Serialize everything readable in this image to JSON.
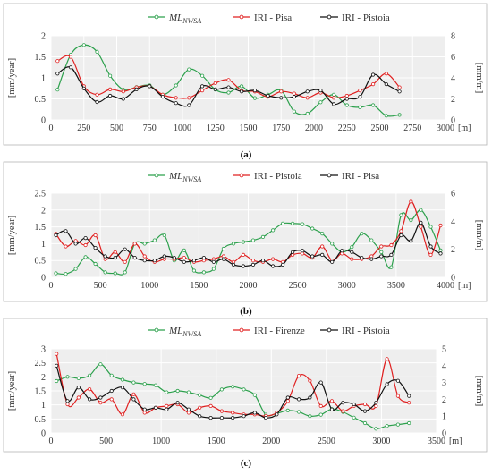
{
  "figure": {
    "panels": [
      {
        "caption": "(a)",
        "y_left_label": "[mm/year]",
        "y_right_label": "[mm/m]",
        "x_unit": "[m]",
        "legend": [
          "ML_NWSA",
          "IRI - Pisa",
          "IRI - Pistoia"
        ]
      },
      {
        "caption": "(b)",
        "y_left_label": "[mm/year]",
        "y_right_label": "[mm/m]",
        "x_unit": "[m]",
        "legend": [
          "ML_NWSA",
          "IRI - Pistoia",
          "IRI - Pisa"
        ]
      },
      {
        "caption": "(c)",
        "y_left_label": "[mm/year]",
        "y_right_label": "[mm/m]",
        "x_unit": "[m]",
        "legend": [
          "ML_NWSA",
          "IRI - Firenze",
          "IRI - Pistoia"
        ]
      }
    ]
  },
  "chart_data": [
    {
      "type": "line",
      "xlim": [
        0,
        3000
      ],
      "x_ticks": [
        0,
        250,
        500,
        750,
        1000,
        1250,
        1500,
        1750,
        2000,
        2250,
        2500,
        2750,
        3000
      ],
      "ylim_left": [
        0,
        2
      ],
      "y_left_ticks": [
        0,
        0.5,
        1,
        1.5,
        2
      ],
      "ylim_right": [
        0,
        8
      ],
      "y_right_ticks": [
        0,
        2,
        4,
        6,
        8
      ],
      "grid": true,
      "legend_position": "top",
      "series": [
        {
          "name": "ML_NWSA",
          "axis": "left",
          "color": "#2ca04c",
          "x": [
            50,
            150,
            250,
            350,
            450,
            550,
            650,
            750,
            850,
            950,
            1050,
            1150,
            1250,
            1350,
            1450,
            1550,
            1650,
            1750,
            1850,
            1950,
            2050,
            2150,
            2250,
            2350,
            2450,
            2550,
            2650
          ],
          "y": [
            0.72,
            1.55,
            1.78,
            1.62,
            1.05,
            0.72,
            0.78,
            0.82,
            0.6,
            0.82,
            1.2,
            1.05,
            0.72,
            0.65,
            0.8,
            0.52,
            0.6,
            0.7,
            0.2,
            0.15,
            0.42,
            0.6,
            0.35,
            0.3,
            0.35,
            0.1,
            0.12
          ]
        },
        {
          "name": "IRI - Pisa",
          "axis": "right",
          "color": "#e02020",
          "x": [
            50,
            150,
            250,
            350,
            450,
            550,
            650,
            750,
            850,
            950,
            1050,
            1150,
            1250,
            1350,
            1450,
            1550,
            1650,
            1750,
            1850,
            1950,
            2050,
            2150,
            2250,
            2350,
            2450,
            2550,
            2650
          ],
          "y": [
            5.6,
            6.0,
            3.2,
            2.4,
            2.9,
            2.7,
            3.1,
            3.2,
            2.4,
            2.1,
            2.1,
            2.8,
            3.5,
            3.8,
            2.8,
            2.7,
            2.2,
            2.7,
            2.5,
            2.1,
            2.6,
            2.1,
            2.3,
            2.8,
            3.4,
            4.4,
            3.1
          ]
        },
        {
          "name": "IRI - Pistoia",
          "axis": "right",
          "color": "#111111",
          "x": [
            50,
            150,
            250,
            350,
            450,
            550,
            650,
            750,
            850,
            950,
            1050,
            1150,
            1250,
            1350,
            1450,
            1550,
            1650,
            1750,
            1850,
            1950,
            2050,
            2150,
            2250,
            2350,
            2450,
            2550,
            2650
          ],
          "y": [
            4.4,
            5.0,
            3.0,
            1.7,
            2.3,
            2.0,
            2.9,
            3.2,
            2.2,
            1.6,
            1.4,
            3.2,
            2.9,
            3.1,
            2.7,
            2.8,
            2.3,
            2.1,
            2.2,
            2.7,
            2.8,
            1.5,
            2.0,
            2.2,
            4.3,
            3.4,
            2.7
          ]
        }
      ]
    },
    {
      "type": "line",
      "xlim": [
        0,
        4000
      ],
      "x_ticks": [
        0,
        500,
        1000,
        1500,
        2000,
        2500,
        3000,
        3500,
        4000
      ],
      "ylim_left": [
        0,
        2.5
      ],
      "y_left_ticks": [
        0,
        0.5,
        1,
        1.5,
        2,
        2.5
      ],
      "ylim_right": [
        0,
        6
      ],
      "y_right_ticks": [
        0,
        2,
        4,
        6
      ],
      "grid": true,
      "legend_position": "top",
      "series": [
        {
          "name": "ML_NWSA",
          "axis": "left",
          "color": "#2ca04c",
          "x": [
            50,
            150,
            250,
            350,
            450,
            550,
            650,
            750,
            850,
            950,
            1050,
            1150,
            1250,
            1350,
            1450,
            1550,
            1650,
            1750,
            1850,
            1950,
            2050,
            2150,
            2250,
            2350,
            2450,
            2550,
            2650,
            2750,
            2850,
            2950,
            3050,
            3150,
            3250,
            3350,
            3450,
            3550,
            3650,
            3750,
            3850,
            3950
          ],
          "y": [
            0.12,
            0.1,
            0.25,
            0.6,
            0.4,
            0.15,
            0.12,
            0.15,
            1.0,
            1.0,
            1.1,
            1.25,
            0.5,
            0.8,
            0.2,
            0.15,
            0.25,
            0.85,
            1.0,
            1.05,
            1.1,
            1.2,
            1.4,
            1.6,
            1.6,
            1.58,
            1.45,
            1.3,
            1.0,
            0.75,
            0.9,
            1.3,
            1.1,
            0.75,
            0.3,
            1.85,
            1.7,
            2.0,
            1.5,
            0.8
          ]
        },
        {
          "name": "IRI - Pistoia",
          "axis": "right",
          "color": "#e02020",
          "x": [
            50,
            150,
            250,
            350,
            450,
            550,
            650,
            750,
            850,
            950,
            1050,
            1150,
            1250,
            1350,
            1450,
            1550,
            1650,
            1750,
            1850,
            1950,
            2050,
            2150,
            2250,
            2350,
            2450,
            2550,
            2650,
            2750,
            2850,
            2950,
            3050,
            3150,
            3250,
            3350,
            3450,
            3550,
            3650,
            3750,
            3850,
            3950
          ],
          "y": [
            3.1,
            2.2,
            2.6,
            2.3,
            3.0,
            1.3,
            1.8,
            1.1,
            2.4,
            1.5,
            1.1,
            1.3,
            1.3,
            1.4,
            1.1,
            1.2,
            1.3,
            1.5,
            1.1,
            1.6,
            1.2,
            1.1,
            1.3,
            1.1,
            1.6,
            1.7,
            1.4,
            2.2,
            1.2,
            1.7,
            1.3,
            1.3,
            1.5,
            2.2,
            2.3,
            3.3,
            5.4,
            3.6,
            1.6,
            3.7
          ]
        },
        {
          "name": "IRI - Pisa",
          "axis": "right",
          "color": "#111111",
          "x": [
            50,
            150,
            250,
            350,
            450,
            550,
            650,
            750,
            850,
            950,
            1050,
            1150,
            1250,
            1350,
            1450,
            1550,
            1650,
            1750,
            1850,
            1950,
            2050,
            2150,
            2250,
            2350,
            2450,
            2550,
            2650,
            2750,
            2850,
            2950,
            3050,
            3150,
            3250,
            3350,
            3450,
            3550,
            3650,
            3750,
            3850,
            3950
          ],
          "y": [
            3.0,
            3.3,
            2.4,
            2.8,
            2.1,
            1.5,
            1.4,
            2.0,
            1.4,
            1.2,
            1.2,
            1.5,
            1.4,
            1.1,
            1.2,
            1.4,
            1.1,
            1.3,
            0.9,
            0.8,
            0.9,
            1.2,
            0.8,
            0.9,
            1.8,
            1.9,
            1.5,
            1.6,
            1.1,
            1.9,
            1.8,
            1.4,
            1.3,
            1.5,
            1.6,
            3.0,
            2.6,
            3.9,
            2.2,
            1.7
          ]
        }
      ]
    },
    {
      "type": "line",
      "xlim": [
        0,
        3500
      ],
      "x_ticks": [
        0,
        500,
        1000,
        1500,
        2000,
        2500,
        3000,
        3500
      ],
      "ylim_left": [
        0,
        3
      ],
      "y_left_ticks": [
        0,
        0.5,
        1,
        1.5,
        2,
        2.5,
        3
      ],
      "ylim_right": [
        0,
        5
      ],
      "y_right_ticks": [
        0,
        1,
        2,
        3,
        4,
        5
      ],
      "grid": true,
      "legend_position": "top",
      "series": [
        {
          "name": "ML_NWSA",
          "axis": "left",
          "color": "#2ca04c",
          "x": [
            50,
            150,
            250,
            350,
            450,
            550,
            650,
            750,
            850,
            950,
            1050,
            1150,
            1250,
            1350,
            1450,
            1550,
            1650,
            1750,
            1850,
            1950,
            2050,
            2150,
            2250,
            2350,
            2450,
            2550,
            2650,
            2750,
            2850,
            2950,
            3050,
            3150,
            3250
          ],
          "y": [
            1.85,
            2.0,
            1.95,
            2.05,
            2.45,
            2.05,
            1.9,
            1.8,
            1.75,
            1.7,
            1.45,
            1.5,
            1.45,
            1.35,
            1.25,
            1.55,
            1.65,
            1.55,
            1.35,
            0.65,
            0.7,
            0.8,
            0.75,
            0.6,
            0.65,
            0.85,
            0.75,
            0.55,
            0.35,
            0.15,
            0.25,
            0.3,
            0.35
          ]
        },
        {
          "name": "IRI - Firenze",
          "axis": "right",
          "color": "#e02020",
          "x": [
            50,
            150,
            250,
            350,
            450,
            550,
            650,
            750,
            850,
            950,
            1050,
            1150,
            1250,
            1350,
            1450,
            1550,
            1650,
            1750,
            1850,
            1950,
            2050,
            2150,
            2250,
            2350,
            2450,
            2550,
            2650,
            2750,
            2850,
            2950,
            3050,
            3150,
            3250
          ],
          "y": [
            4.7,
            1.7,
            2.1,
            2.6,
            1.8,
            2.0,
            1.1,
            2.3,
            1.2,
            1.5,
            1.6,
            1.7,
            1.2,
            1.5,
            1.6,
            1.3,
            1.2,
            1.1,
            1.1,
            1.0,
            1.2,
            1.9,
            3.4,
            3.1,
            1.6,
            1.9,
            1.3,
            1.6,
            1.7,
            1.6,
            4.4,
            2.2,
            1.8
          ]
        },
        {
          "name": "IRI - Pistoia",
          "axis": "right",
          "color": "#111111",
          "x": [
            50,
            150,
            250,
            350,
            450,
            550,
            650,
            750,
            850,
            950,
            1050,
            1150,
            1250,
            1350,
            1450,
            1550,
            1650,
            1750,
            1850,
            1950,
            2050,
            2150,
            2250,
            2350,
            2450,
            2550,
            2650,
            2750,
            2850,
            2950,
            3050,
            3150,
            3250
          ],
          "y": [
            4.0,
            1.9,
            2.7,
            2.0,
            2.1,
            2.5,
            2.7,
            2.0,
            1.4,
            1.5,
            1.4,
            1.8,
            1.4,
            1.0,
            0.9,
            0.9,
            0.9,
            1.0,
            1.2,
            0.9,
            1.1,
            2.1,
            2.0,
            2.1,
            3.0,
            1.4,
            1.8,
            1.7,
            1.3,
            1.8,
            2.9,
            3.1,
            2.2
          ]
        }
      ]
    }
  ]
}
